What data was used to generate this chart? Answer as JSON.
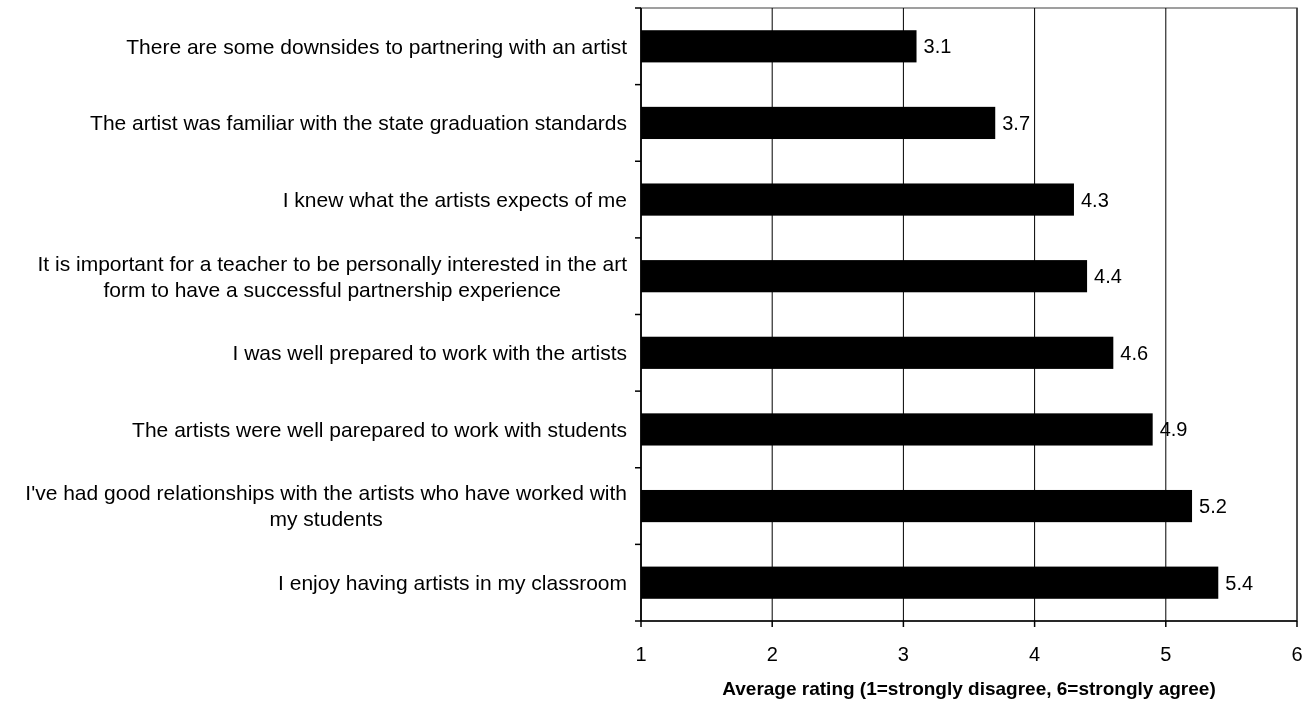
{
  "chart_data": {
    "type": "bar",
    "orientation": "horizontal",
    "categories": [
      "There are some downsides to partnering with an artist",
      "The artist was familiar with the state graduation standards",
      "I knew what the artists expects of me",
      "It is important for a teacher to be personally interested in the art form to have a successful partnership experience",
      "I was well prepared to work with the artists",
      "The artists were well parepared to work with students",
      "I've had good relationships with the artists who have worked with my students",
      "I enjoy having artists in my classroom"
    ],
    "values": [
      3.1,
      3.7,
      4.3,
      4.4,
      4.6,
      4.9,
      5.2,
      5.4
    ],
    "color": "#000000",
    "xlabel": "Average rating (1=strongly disagree, 6=strongly agree)",
    "xlim": [
      1,
      6
    ],
    "xticks": [
      1,
      2,
      3,
      4,
      5,
      6
    ],
    "grid": "x",
    "data_labels": true
  }
}
